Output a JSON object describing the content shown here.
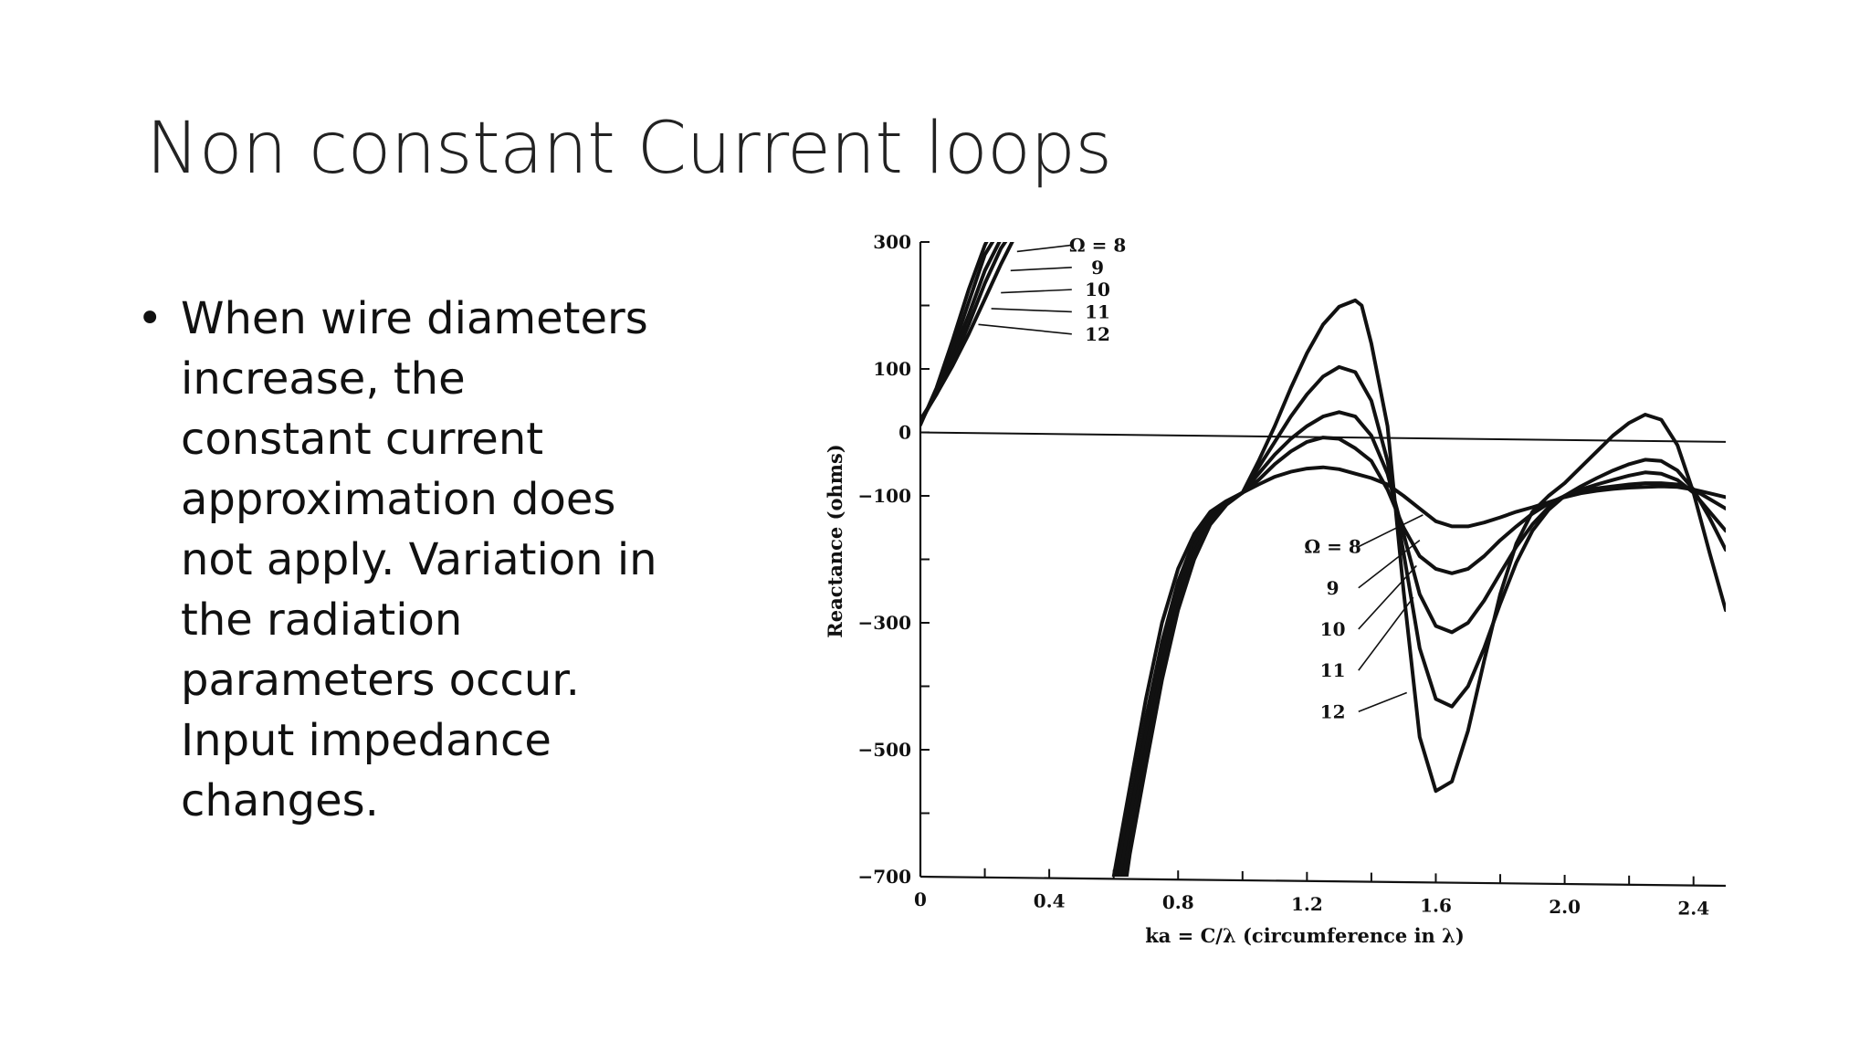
{
  "slide": {
    "title": "Non constant Current loops",
    "bullet_marker": "•",
    "bullet_text": "When wire diameters\nincrease, the\nconstant current\napproximation does\nnot apply. Variation in\nthe radiation\nparameters occur.\nInput impedance\nchanges."
  },
  "chart_data": {
    "type": "line",
    "title": "",
    "xlabel": "ka = C/λ (circumference in λ)",
    "ylabel": "Reactance (ohms)",
    "xlim": [
      0,
      2.5
    ],
    "ylim": [
      -700,
      300
    ],
    "x_ticks": [
      0,
      0.4,
      0.8,
      1.2,
      1.6,
      2.0,
      2.4
    ],
    "x_tick_labels": [
      "0",
      "0.4",
      "0.8",
      "1.2",
      "1.6",
      "2.0",
      "2.4"
    ],
    "x_minor_ticks": [
      0.2,
      0.6,
      1.0,
      1.4,
      1.8,
      2.2
    ],
    "y_ticks": [
      300,
      100,
      0,
      -100,
      -300,
      -500,
      -700
    ],
    "y_tick_labels": [
      "300",
      "100",
      "0",
      "−100",
      "−300",
      "−500",
      "−700"
    ],
    "y_minor_ticks": [
      200,
      -200,
      -400,
      -600
    ],
    "grid": false,
    "line_color": "#111111",
    "zero_line": {
      "x": [
        0,
        2.5
      ],
      "y": [
        0,
        -15
      ]
    },
    "series": [
      {
        "name": "Ω = 8",
        "segments": [
          {
            "x": [
              0,
              0.05,
              0.1,
              0.15,
              0.2,
              0.25,
              0.29
            ],
            "y": [
              20,
              60,
              105,
              155,
              210,
              265,
              305
            ]
          },
          {
            "x": [
              0.6,
              0.65,
              0.7,
              0.75,
              0.8,
              0.85,
              0.9,
              0.95,
              1.0,
              1.05,
              1.1,
              1.15,
              1.2,
              1.25,
              1.3,
              1.35,
              1.4,
              1.45,
              1.5,
              1.55,
              1.6,
              1.65,
              1.7,
              1.75,
              1.8,
              1.85,
              1.9,
              1.95,
              2.0,
              2.05,
              2.1,
              2.15,
              2.2,
              2.25,
              2.3,
              2.35,
              2.4,
              2.45,
              2.5
            ],
            "y": [
              -700,
              -560,
              -420,
              -300,
              -215,
              -160,
              -125,
              -108,
              -95,
              -82,
              -70,
              -62,
              -57,
              -55,
              -58,
              -65,
              -72,
              -82,
              -100,
              -120,
              -140,
              -148,
              -148,
              -142,
              -134,
              -125,
              -118,
              -110,
              -102,
              -96,
              -92,
              -89,
              -87,
              -86,
              -85,
              -86,
              -90,
              -96,
              -102
            ]
          }
        ]
      },
      {
        "name": "Ω = 9",
        "segments": [
          {
            "x": [
              0,
              0.05,
              0.1,
              0.15,
              0.2,
              0.25,
              0.27
            ],
            "y": [
              18,
              60,
              110,
              170,
              235,
              290,
              305
            ]
          },
          {
            "x": [
              0.61,
              0.65,
              0.7,
              0.75,
              0.8,
              0.85,
              0.9,
              0.95,
              1.0,
              1.05,
              1.1,
              1.15,
              1.2,
              1.25,
              1.3,
              1.35,
              1.4,
              1.45,
              1.5,
              1.55,
              1.6,
              1.65,
              1.7,
              1.75,
              1.8,
              1.85,
              1.9,
              1.95,
              2.0,
              2.05,
              2.1,
              2.15,
              2.2,
              2.25,
              2.3,
              2.35,
              2.4,
              2.45,
              2.5
            ],
            "y": [
              -700,
              -590,
              -450,
              -330,
              -235,
              -170,
              -130,
              -110,
              -95,
              -75,
              -50,
              -30,
              -15,
              -8,
              -10,
              -25,
              -45,
              -90,
              -150,
              -195,
              -215,
              -222,
              -215,
              -195,
              -170,
              -148,
              -128,
              -112,
              -100,
              -92,
              -88,
              -85,
              -82,
              -80,
              -80,
              -82,
              -90,
              -105,
              -120
            ]
          }
        ]
      },
      {
        "name": "Ω = 10",
        "segments": [
          {
            "x": [
              0,
              0.05,
              0.1,
              0.15,
              0.2,
              0.25
            ],
            "y": [
              16,
              62,
              120,
              185,
              255,
              305
            ]
          },
          {
            "x": [
              0.62,
              0.65,
              0.7,
              0.75,
              0.8,
              0.85,
              0.9,
              0.95,
              1.0,
              1.05,
              1.1,
              1.15,
              1.2,
              1.25,
              1.3,
              1.35,
              1.4,
              1.45,
              1.5,
              1.55,
              1.6,
              1.65,
              1.7,
              1.75,
              1.8,
              1.85,
              1.9,
              1.95,
              2.0,
              2.05,
              2.1,
              2.15,
              2.2,
              2.25,
              2.3,
              2.35,
              2.4,
              2.45,
              2.5
            ],
            "y": [
              -700,
              -610,
              -475,
              -350,
              -250,
              -180,
              -135,
              -110,
              -95,
              -65,
              -35,
              -10,
              10,
              25,
              32,
              25,
              -5,
              -65,
              -160,
              -255,
              -305,
              -315,
              -300,
              -265,
              -222,
              -180,
              -145,
              -118,
              -100,
              -90,
              -82,
              -75,
              -68,
              -63,
              -65,
              -75,
              -95,
              -125,
              -155
            ]
          }
        ]
      },
      {
        "name": "Ω = 11",
        "segments": [
          {
            "x": [
              0,
              0.05,
              0.1,
              0.15,
              0.2,
              0.23
            ],
            "y": [
              14,
              65,
              130,
              205,
              280,
              305
            ]
          },
          {
            "x": [
              0.63,
              0.65,
              0.7,
              0.75,
              0.8,
              0.85,
              0.9,
              0.95,
              1.0,
              1.05,
              1.1,
              1.15,
              1.2,
              1.25,
              1.3,
              1.35,
              1.4,
              1.45,
              1.5,
              1.55,
              1.6,
              1.65,
              1.7,
              1.75,
              1.8,
              1.85,
              1.9,
              1.95,
              2.0,
              2.05,
              2.1,
              2.15,
              2.2,
              2.25,
              2.3,
              2.35,
              2.4,
              2.45,
              2.5
            ],
            "y": [
              -700,
              -640,
              -500,
              -370,
              -265,
              -190,
              -140,
              -112,
              -95,
              -55,
              -15,
              25,
              60,
              88,
              103,
              95,
              50,
              -45,
              -190,
              -340,
              -420,
              -432,
              -400,
              -340,
              -270,
              -205,
              -155,
              -122,
              -100,
              -85,
              -72,
              -60,
              -50,
              -43,
              -45,
              -60,
              -90,
              -135,
              -185
            ]
          }
        ]
      },
      {
        "name": "Ω = 12",
        "segments": [
          {
            "x": [
              0,
              0.05,
              0.1,
              0.15,
              0.2,
              0.21
            ],
            "y": [
              12,
              70,
              145,
              225,
              295,
              305
            ]
          },
          {
            "x": [
              0.64,
              0.65,
              0.7,
              0.75,
              0.8,
              0.85,
              0.9,
              0.95,
              1.0,
              1.05,
              1.1,
              1.15,
              1.2,
              1.25,
              1.3,
              1.35,
              1.37,
              1.4,
              1.45,
              1.5,
              1.55,
              1.6,
              1.65,
              1.7,
              1.75,
              1.8,
              1.85,
              1.9,
              1.95,
              2.0,
              2.05,
              2.1,
              2.15,
              2.2,
              2.25,
              2.3,
              2.35,
              2.4,
              2.45,
              2.5
            ],
            "y": [
              -700,
              -665,
              -525,
              -390,
              -280,
              -200,
              -145,
              -114,
              -95,
              -45,
              10,
              70,
              125,
              170,
              198,
              208,
              200,
              140,
              10,
              -250,
              -480,
              -565,
              -550,
              -470,
              -360,
              -255,
              -175,
              -125,
              -100,
              -80,
              -55,
              -30,
              -5,
              15,
              28,
              20,
              -20,
              -95,
              -190,
              -280
            ]
          }
        ]
      }
    ],
    "annotations": [
      {
        "text": "Ω = 8",
        "x": 0.55,
        "y": 295
      },
      {
        "text": "9",
        "x": 0.55,
        "y": 260
      },
      {
        "text": "10",
        "x": 0.55,
        "y": 225
      },
      {
        "text": "11",
        "x": 0.55,
        "y": 190
      },
      {
        "text": "12",
        "x": 0.55,
        "y": 155
      },
      {
        "text": "Ω = 8",
        "x": 1.28,
        "y": -180
      },
      {
        "text": "9",
        "x": 1.28,
        "y": -245
      },
      {
        "text": "10",
        "x": 1.28,
        "y": -310
      },
      {
        "text": "11",
        "x": 1.28,
        "y": -375
      },
      {
        "text": "12",
        "x": 1.28,
        "y": -440
      }
    ],
    "leader_lines": [
      {
        "from": [
          0.47,
          295
        ],
        "to": [
          0.3,
          285
        ]
      },
      {
        "from": [
          0.47,
          260
        ],
        "to": [
          0.28,
          255
        ]
      },
      {
        "from": [
          0.47,
          225
        ],
        "to": [
          0.25,
          220
        ]
      },
      {
        "from": [
          0.47,
          190
        ],
        "to": [
          0.22,
          195
        ]
      },
      {
        "from": [
          0.47,
          155
        ],
        "to": [
          0.18,
          170
        ]
      },
      {
        "from": [
          1.36,
          -180
        ],
        "to": [
          1.56,
          -130
        ]
      },
      {
        "from": [
          1.36,
          -245
        ],
        "to": [
          1.55,
          -170
        ]
      },
      {
        "from": [
          1.36,
          -310
        ],
        "to": [
          1.54,
          -210
        ]
      },
      {
        "from": [
          1.36,
          -375
        ],
        "to": [
          1.53,
          -260
        ]
      },
      {
        "from": [
          1.36,
          -440
        ],
        "to": [
          1.51,
          -410
        ]
      }
    ]
  }
}
